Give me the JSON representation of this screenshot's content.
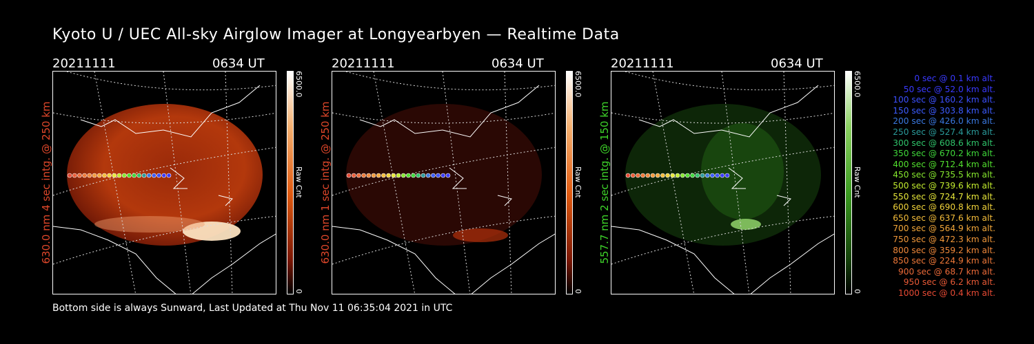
{
  "title": "Kyoto U / UEC All-sky Airglow Imager at Longyearbyen — Realtime Data",
  "panels": [
    {
      "date": "20211111",
      "time": "0634 UT",
      "label": "630.0 nm 4 sec intg. @ 250 km",
      "label_color": "#e0472a",
      "cbar_max": "6500.0",
      "cbar_min": "0",
      "cbar_unit": "Raw Cnt",
      "color": "red"
    },
    {
      "date": "20211111",
      "time": "0634 UT",
      "label": "630.0 nm 1 sec intg. @ 250 km",
      "label_color": "#e0472a",
      "cbar_max": "6500.0",
      "cbar_min": "0",
      "cbar_unit": "Raw Cnt",
      "color": "red"
    },
    {
      "date": "20211111",
      "time": "0634 UT",
      "label": "557.7 nm 2 sec intg. @ 150 km",
      "label_color": "#3fd62a",
      "cbar_max": "6500.0",
      "cbar_min": "0",
      "cbar_unit": "Raw Cnt",
      "color": "green"
    }
  ],
  "legend": [
    {
      "text": "0 sec @   0.1 km alt.",
      "color": "#3a3aff"
    },
    {
      "text": "50 sec @  52.0 km alt.",
      "color": "#3a3aff"
    },
    {
      "text": "100 sec @ 160.2 km alt.",
      "color": "#3c50ff"
    },
    {
      "text": "150 sec @ 303.8 km alt.",
      "color": "#3c5cff"
    },
    {
      "text": "200 sec @ 426.0 km alt.",
      "color": "#3a78e0"
    },
    {
      "text": "250 sec @ 527.4 km alt.",
      "color": "#2a9a9a"
    },
    {
      "text": "300 sec @ 608.6 km alt.",
      "color": "#2fc46a"
    },
    {
      "text": "350 sec @ 670.2 km alt.",
      "color": "#3fd83a"
    },
    {
      "text": "400 sec @ 712.4 km alt.",
      "color": "#52e02e"
    },
    {
      "text": "450 sec @ 735.5 km alt.",
      "color": "#86e82e"
    },
    {
      "text": "500 sec @ 739.6 km alt.",
      "color": "#c2ec2e"
    },
    {
      "text": "550 sec @ 724.7 km alt.",
      "color": "#e8e83a"
    },
    {
      "text": "600 sec @ 690.8 km alt.",
      "color": "#f2d43a"
    },
    {
      "text": "650 sec @ 637.6 km alt.",
      "color": "#f4bc3a"
    },
    {
      "text": "700 sec @ 564.9 km alt.",
      "color": "#f4a83a"
    },
    {
      "text": "750 sec @ 472.3 km alt.",
      "color": "#f2983a"
    },
    {
      "text": "800 sec @ 359.2 km alt.",
      "color": "#f0883a"
    },
    {
      "text": "850 sec @ 224.9 km alt.",
      "color": "#ee7838"
    },
    {
      "text": "900 sec @  68.7 km alt.",
      "color": "#ec6a38"
    },
    {
      "text": "950 sec @   6.2 km alt.",
      "color": "#ea5a36"
    },
    {
      "text": "1000 sec @   0.4 km alt.",
      "color": "#e84a34"
    }
  ],
  "footer": "Bottom side is always Sunward, Last Updated at Thu Nov 11 06:35:04 2021 in UTC"
}
